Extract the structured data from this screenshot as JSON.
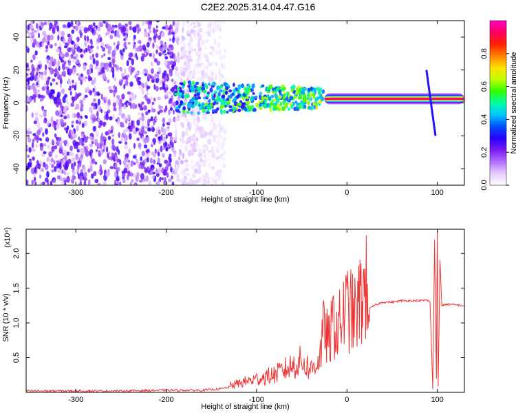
{
  "title": "C2E2.2025.314.04.47.G16",
  "chart_data": [
    {
      "type": "heatmap",
      "xlabel": "Height of straight line (km)",
      "ylabel": "Frequency (Hz)",
      "xlim": [
        -355,
        130
      ],
      "ylim": [
        -50,
        50
      ],
      "x_ticks": [
        -300,
        -200,
        -100,
        0,
        100
      ],
      "y_ticks": [
        -40,
        -20,
        0,
        20,
        40
      ],
      "colorbar": {
        "label": "Normalized spectral amplitude",
        "range": [
          0,
          1
        ],
        "ticks": [
          0.0,
          0.2,
          0.4,
          0.6,
          0.8
        ],
        "colormap": [
          "#ffffff",
          "#e6ccff",
          "#b070ff",
          "#7a1cf0",
          "#2a00ff",
          "#0050ff",
          "#00c8ff",
          "#00ffa0",
          "#30ff00",
          "#c0ff00",
          "#ffe000",
          "#ff8000",
          "#ff2000",
          "#ff0060",
          "#ff00c0"
        ]
      },
      "regions": [
        {
          "x": [
            -355,
            -190
          ],
          "freq": [
            -50,
            50
          ],
          "amplitude": 0.2,
          "pattern": "noise"
        },
        {
          "x": [
            -190,
            -135
          ],
          "freq": [
            -50,
            50
          ],
          "amplitude": 0.08,
          "pattern": "sparse-noise"
        },
        {
          "x": [
            -190,
            -25
          ],
          "freq": [
            -5,
            15
          ],
          "amplitude": 0.35,
          "pattern": "band"
        },
        {
          "x": [
            -25,
            130
          ],
          "freq": [
            1,
            4
          ],
          "amplitude": 0.95,
          "pattern": "tone",
          "center_freq": 2.5
        },
        {
          "x": [
            88,
            98
          ],
          "freq": [
            -20,
            20
          ],
          "amplitude": 0.3,
          "pattern": "streak"
        }
      ]
    },
    {
      "type": "line",
      "xlabel": "Height of straight line (km)",
      "ylabel": "SNR (10 * v/v)",
      "y_multiplier": "(x10⁴)",
      "xlim": [
        -355,
        130
      ],
      "ylim": [
        0,
        2.35
      ],
      "x_ticks": [
        -300,
        -200,
        -100,
        0,
        100
      ],
      "y_ticks": [
        0.5,
        1.0,
        1.5,
        2.0
      ],
      "series": [
        {
          "color": "#ee3333",
          "x": [
            -355,
            -300,
            -250,
            -200,
            -160,
            -140,
            -120,
            -100,
            -80,
            -70,
            -60,
            -50,
            -40,
            -30,
            -25,
            -20,
            -15,
            -10,
            -5,
            0,
            5,
            10,
            15,
            20,
            30,
            40,
            50,
            60,
            70,
            80,
            88,
            92,
            95,
            97,
            99,
            100,
            101,
            103,
            105,
            110,
            120,
            130
          ],
          "y": [
            0.02,
            0.02,
            0.02,
            0.03,
            0.03,
            0.05,
            0.1,
            0.15,
            0.2,
            0.25,
            0.3,
            0.35,
            0.25,
            0.4,
            0.75,
            0.55,
            0.8,
            0.7,
            0.85,
            0.95,
            0.9,
            0.85,
            1.05,
            1.15,
            1.25,
            1.3,
            1.3,
            1.32,
            1.32,
            1.32,
            1.33,
            1.3,
            0.05,
            2.2,
            0.2,
            2.35,
            0.1,
            1.9,
            1.25,
            1.27,
            1.26,
            1.25
          ]
        }
      ]
    }
  ]
}
